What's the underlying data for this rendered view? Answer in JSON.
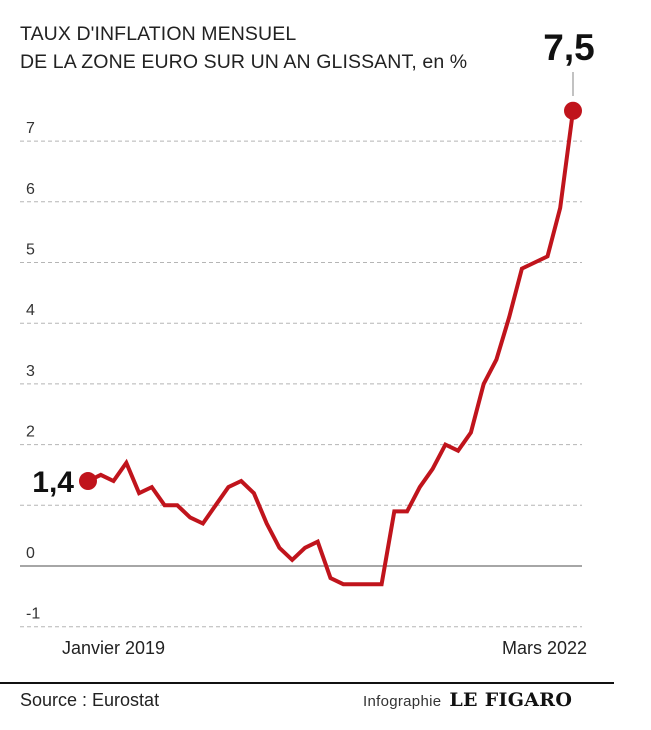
{
  "chart_data": {
    "type": "line",
    "title_line1": "TAUX D'INFLATION MENSUEL",
    "title_line2": "DE LA ZONE EURO SUR UN AN GLISSANT,",
    "unit": "en %",
    "ylim": [
      -1,
      7
    ],
    "yticks": [
      "-1",
      "0",
      "2",
      "3",
      "4",
      "5",
      "6",
      "7"
    ],
    "ytick_values": [
      -1,
      0,
      2,
      3,
      4,
      5,
      6,
      7
    ],
    "grid": true,
    "start_label": "Janvier 2019",
    "end_label": "Mars 2022",
    "start_value_label": "1,4",
    "end_value_label": "7,5",
    "series": [
      {
        "color": "#c0141c",
        "values": [
          1.4,
          1.5,
          1.4,
          1.7,
          1.2,
          1.3,
          1.0,
          1.0,
          0.8,
          0.7,
          1.0,
          1.3,
          1.4,
          1.2,
          0.7,
          0.3,
          0.1,
          0.3,
          0.4,
          -0.2,
          -0.3,
          -0.3,
          -0.3,
          -0.3,
          0.9,
          0.9,
          1.3,
          1.6,
          2.0,
          1.9,
          2.2,
          3.0,
          3.4,
          4.1,
          4.9,
          5.0,
          5.1,
          5.9,
          7.5
        ]
      }
    ]
  },
  "footer": {
    "source": "Source : Eurostat",
    "infographie": "Infographie",
    "logo": "LE FIGARO"
  }
}
